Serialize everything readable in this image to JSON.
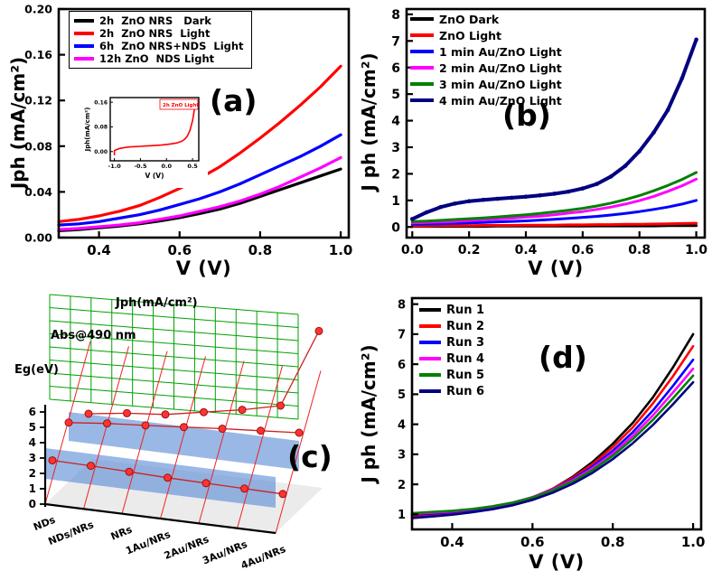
{
  "figure": {
    "background": "#ffffff"
  },
  "chart_data": [
    {
      "panel": "a",
      "panel_label": "(a)",
      "type": "line",
      "xlabel": "V (V)",
      "ylabel": "Jph (mA/cm²)",
      "xlim": [
        0.3,
        1.02
      ],
      "ylim": [
        0,
        0.2
      ],
      "xticks": [
        "0.4",
        "0.6",
        "0.8",
        "1.0"
      ],
      "yticks": [
        "0.00",
        "0.04",
        "0.08",
        "0.12",
        "0.16",
        "0.20"
      ],
      "x": [
        0.3,
        0.35,
        0.4,
        0.45,
        0.5,
        0.55,
        0.6,
        0.65,
        0.7,
        0.75,
        0.8,
        0.85,
        0.9,
        0.95,
        1.0
      ],
      "series": [
        {
          "name": "2h  ZnO NRS   Dark",
          "color": "#000000",
          "values": [
            0.006,
            0.007,
            0.0085,
            0.01,
            0.012,
            0.0145,
            0.0175,
            0.021,
            0.025,
            0.03,
            0.036,
            0.042,
            0.048,
            0.054,
            0.06
          ]
        },
        {
          "name": "2h  ZnO NRS  Light",
          "color": "#ff0000",
          "values": [
            0.014,
            0.016,
            0.019,
            0.023,
            0.028,
            0.035,
            0.043,
            0.052,
            0.062,
            0.074,
            0.087,
            0.101,
            0.116,
            0.132,
            0.15
          ]
        },
        {
          "name": "6h  ZnO NRS+NDS  Light",
          "color": "#0000ff",
          "values": [
            0.011,
            0.012,
            0.014,
            0.017,
            0.02,
            0.024,
            0.029,
            0.034,
            0.04,
            0.047,
            0.055,
            0.063,
            0.071,
            0.08,
            0.09
          ]
        },
        {
          "name": "12h ZnO  NDS Light",
          "color": "#ff00ff",
          "values": [
            0.007,
            0.008,
            0.0095,
            0.011,
            0.013,
            0.016,
            0.019,
            0.023,
            0.027,
            0.032,
            0.038,
            0.045,
            0.053,
            0.061,
            0.07
          ]
        }
      ],
      "inset": {
        "type": "line",
        "legend": "2h ZnO Light",
        "xlabel": "V (V)",
        "ylabel": "Jph(mA/cm²)",
        "color": "#ff0000",
        "xlim": [
          -1.08,
          0.62
        ],
        "ylim": [
          -0.03,
          0.175
        ],
        "xticks": [
          "-1.0",
          "-0.5",
          "0.0",
          "0.5"
        ],
        "yticks": [
          "0.00",
          "0.08",
          "0.16"
        ],
        "x": [
          -1.0,
          -1.0,
          -0.9,
          -0.8,
          -0.7,
          -0.6,
          -0.5,
          -0.4,
          -0.3,
          -0.2,
          -0.1,
          0.0,
          0.1,
          0.2,
          0.3,
          0.35,
          0.4,
          0.45,
          0.5,
          0.53,
          0.56
        ],
        "values": [
          -0.012,
          0.003,
          0.01,
          0.013,
          0.015,
          0.016,
          0.017,
          0.018,
          0.019,
          0.02,
          0.021,
          0.023,
          0.025,
          0.028,
          0.034,
          0.04,
          0.05,
          0.068,
          0.1,
          0.13,
          0.162
        ]
      }
    },
    {
      "panel": "b",
      "panel_label": "(b)",
      "type": "line",
      "xlabel": "V (V)",
      "ylabel": "J ph (mA/cm²)",
      "xlim": [
        -0.02,
        1.03
      ],
      "ylim": [
        -0.4,
        8.2
      ],
      "xticks": [
        "0.0",
        "0.2",
        "0.4",
        "0.6",
        "0.8",
        "1.0"
      ],
      "yticks": [
        "0",
        "1",
        "2",
        "3",
        "4",
        "5",
        "6",
        "7",
        "8"
      ],
      "x": [
        0,
        0.05,
        0.1,
        0.15,
        0.2,
        0.25,
        0.3,
        0.35,
        0.4,
        0.45,
        0.5,
        0.55,
        0.6,
        0.65,
        0.7,
        0.75,
        0.8,
        0.85,
        0.9,
        0.95,
        1.0
      ],
      "series": [
        {
          "name": "ZnO Dark",
          "color": "#000000",
          "values": [
            0.02,
            0.02,
            0.02,
            0.02,
            0.02,
            0.02,
            0.03,
            0.03,
            0.03,
            0.03,
            0.03,
            0.03,
            0.03,
            0.04,
            0.04,
            0.04,
            0.04,
            0.04,
            0.05,
            0.05,
            0.05
          ]
        },
        {
          "name": "ZnO Light",
          "color": "#ff0000",
          "values": [
            0.04,
            0.04,
            0.05,
            0.05,
            0.05,
            0.06,
            0.06,
            0.06,
            0.07,
            0.07,
            0.07,
            0.08,
            0.08,
            0.09,
            0.09,
            0.1,
            0.1,
            0.11,
            0.12,
            0.13,
            0.14
          ]
        },
        {
          "name": "1 min Au/ZnO Light",
          "color": "#0000ff",
          "values": [
            0.1,
            0.11,
            0.12,
            0.14,
            0.15,
            0.17,
            0.19,
            0.21,
            0.23,
            0.26,
            0.29,
            0.32,
            0.36,
            0.4,
            0.45,
            0.51,
            0.58,
            0.66,
            0.75,
            0.86,
            1.0
          ]
        },
        {
          "name": "2 min Au/ZnO Light",
          "color": "#ff00ff",
          "values": [
            0.15,
            0.17,
            0.19,
            0.21,
            0.24,
            0.27,
            0.3,
            0.33,
            0.37,
            0.41,
            0.46,
            0.52,
            0.58,
            0.66,
            0.75,
            0.86,
            0.99,
            1.15,
            1.34,
            1.55,
            1.8
          ]
        },
        {
          "name": "3 min Au/ZnO Light",
          "color": "#008000",
          "values": [
            0.2,
            0.22,
            0.25,
            0.28,
            0.31,
            0.34,
            0.38,
            0.42,
            0.46,
            0.51,
            0.57,
            0.63,
            0.7,
            0.79,
            0.9,
            1.03,
            1.18,
            1.36,
            1.56,
            1.79,
            2.05
          ]
        },
        {
          "name": "4 min Au/ZnO Light",
          "color": "#000080",
          "marker": true,
          "values": [
            0.3,
            0.55,
            0.75,
            0.88,
            0.97,
            1.02,
            1.06,
            1.1,
            1.14,
            1.19,
            1.25,
            1.33,
            1.45,
            1.62,
            1.9,
            2.3,
            2.85,
            3.55,
            4.4,
            5.6,
            7.05
          ]
        }
      ]
    },
    {
      "panel": "c",
      "panel_label": "(c)",
      "type": "line-3d",
      "axis_labels": [
        "Jph(mA/cm²)",
        "Abs@490 nm",
        "Eg(eV)"
      ],
      "yticks": [
        "0",
        "1",
        "2",
        "3",
        "4",
        "5",
        "6"
      ],
      "categories": [
        "NDs",
        "NDs/NRs",
        "NRs",
        "1Au/NRs",
        "2Au/NRs",
        "3Au/NRs",
        "4Au/NRs"
      ],
      "series": [
        {
          "name": "Jph(mA/cm²)",
          "color": "#ff2222",
          "values": [
            0.6,
            0.9,
            1.1,
            1.5,
            1.9,
            2.4,
            6.8
          ]
        },
        {
          "name": "Abs@490 nm",
          "color": "#ff2222",
          "values": [
            0.45,
            0.55,
            0.62,
            0.7,
            0.78,
            0.85,
            0.92
          ]
        },
        {
          "name": "Eg(eV)",
          "color": "#ff2222",
          "values": [
            3.2,
            3.15,
            3.05,
            2.95,
            2.9,
            2.85,
            2.8
          ]
        }
      ]
    },
    {
      "panel": "d",
      "panel_label": "(d)",
      "type": "line",
      "xlabel": "V (V)",
      "ylabel": "J ph (mA/cm²)",
      "xlim": [
        0.3,
        1.02
      ],
      "ylim": [
        0.5,
        8.2
      ],
      "xticks": [
        "0.4",
        "0.6",
        "0.8",
        "1.0"
      ],
      "yticks": [
        "1",
        "2",
        "3",
        "4",
        "5",
        "6",
        "7",
        "8"
      ],
      "x": [
        0.3,
        0.35,
        0.4,
        0.45,
        0.5,
        0.55,
        0.6,
        0.65,
        0.7,
        0.75,
        0.8,
        0.85,
        0.9,
        0.95,
        1.0
      ],
      "series": [
        {
          "name": "Run 1",
          "color": "#000000",
          "values": [
            0.92,
            0.96,
            1.0,
            1.08,
            1.18,
            1.33,
            1.55,
            1.85,
            2.25,
            2.75,
            3.35,
            4.05,
            4.9,
            5.9,
            7.0
          ]
        },
        {
          "name": "Run 2",
          "color": "#ff0000",
          "values": [
            0.96,
            1.0,
            1.05,
            1.12,
            1.22,
            1.36,
            1.57,
            1.85,
            2.22,
            2.68,
            3.24,
            3.9,
            4.7,
            5.6,
            6.6
          ]
        },
        {
          "name": "Run 3",
          "color": "#0000ff",
          "values": [
            1.0,
            1.03,
            1.08,
            1.15,
            1.25,
            1.38,
            1.57,
            1.83,
            2.17,
            2.6,
            3.12,
            3.74,
            4.46,
            5.28,
            6.15
          ]
        },
        {
          "name": "Run 4",
          "color": "#ff00ff",
          "values": [
            1.02,
            1.06,
            1.1,
            1.17,
            1.26,
            1.39,
            1.57,
            1.82,
            2.14,
            2.54,
            3.03,
            3.62,
            4.3,
            5.06,
            5.85
          ]
        },
        {
          "name": "Run 5",
          "color": "#008000",
          "values": [
            1.04,
            1.08,
            1.12,
            1.18,
            1.27,
            1.39,
            1.56,
            1.8,
            2.1,
            2.48,
            2.95,
            3.51,
            4.15,
            4.87,
            5.62
          ]
        },
        {
          "name": "Run 6",
          "color": "#000080",
          "values": [
            0.88,
            0.93,
            0.99,
            1.07,
            1.17,
            1.3,
            1.48,
            1.72,
            2.02,
            2.39,
            2.84,
            3.37,
            3.98,
            4.67,
            5.4
          ]
        }
      ]
    }
  ]
}
